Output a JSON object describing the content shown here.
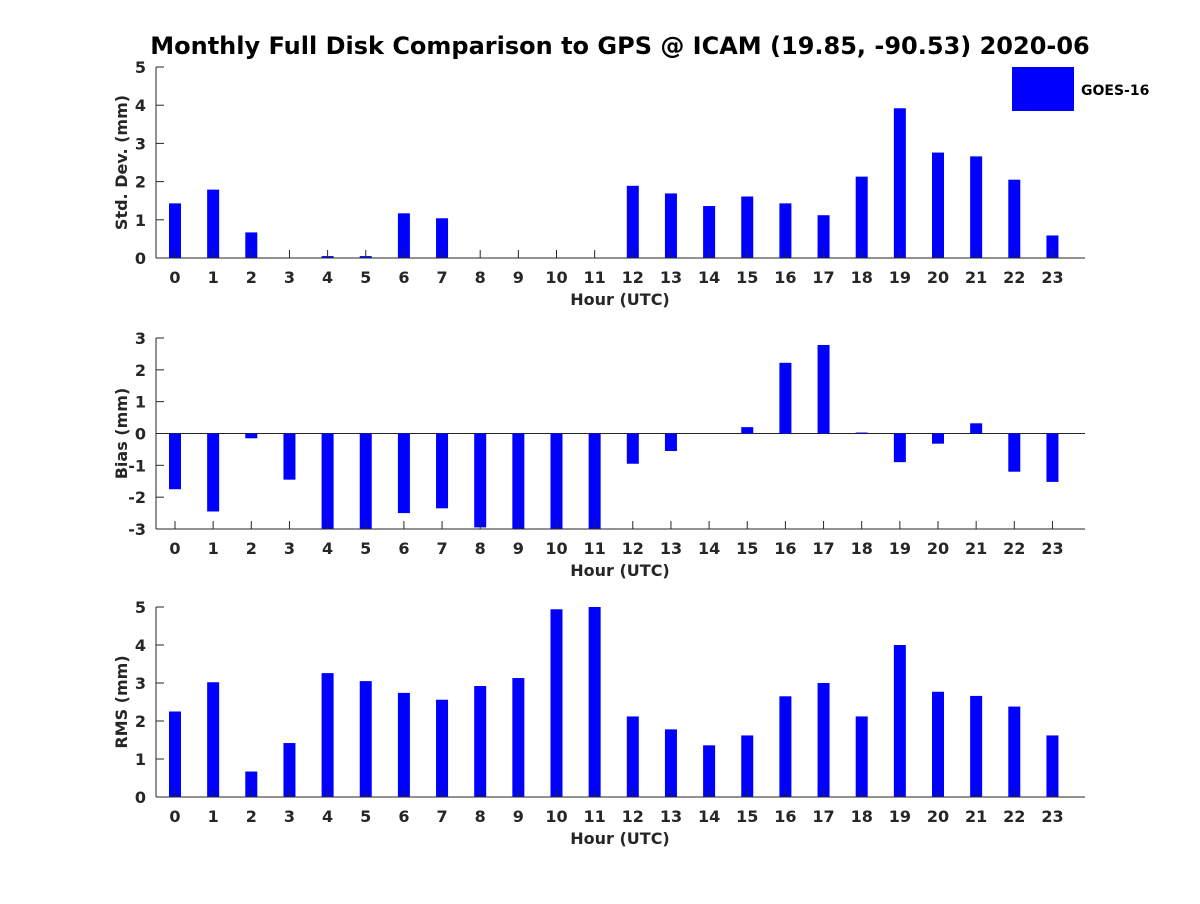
{
  "figure_title": "Monthly Full Disk Comparison to GPS @ ICAM (19.85, -90.53) 2020-06",
  "legend": {
    "label": "GOES-16",
    "color": "#0000ff",
    "placement": "top-right"
  },
  "chart_data": [
    {
      "type": "bar",
      "ylabel": "Std. Dev. (mm)",
      "xlabel": "Hour (UTC)",
      "categories": [
        "0",
        "1",
        "2",
        "3",
        "4",
        "5",
        "6",
        "7",
        "8",
        "9",
        "10",
        "11",
        "12",
        "13",
        "14",
        "15",
        "16",
        "17",
        "18",
        "19",
        "20",
        "21",
        "22",
        "23"
      ],
      "ylim": [
        0,
        5
      ],
      "yticks": [
        0,
        1,
        2,
        3,
        4,
        5
      ],
      "series": [
        {
          "name": "GOES-16",
          "values": [
            1.43,
            1.79,
            0.67,
            0,
            0.05,
            0.05,
            1.17,
            1.04,
            0,
            0,
            0,
            0,
            1.89,
            1.69,
            1.36,
            1.61,
            1.43,
            1.12,
            2.13,
            3.92,
            2.76,
            2.66,
            2.05,
            0.59
          ]
        }
      ],
      "grid": false
    },
    {
      "type": "bar",
      "ylabel": "Bias (mm)",
      "xlabel": "Hour (UTC)",
      "categories": [
        "0",
        "1",
        "2",
        "3",
        "4",
        "5",
        "6",
        "7",
        "8",
        "9",
        "10",
        "11",
        "12",
        "13",
        "14",
        "15",
        "16",
        "17",
        "18",
        "19",
        "20",
        "21",
        "22",
        "23"
      ],
      "ylim": [
        -3,
        3
      ],
      "yticks": [
        -3,
        -2,
        -1,
        0,
        1,
        2,
        3
      ],
      "series": [
        {
          "name": "GOES-16",
          "values": [
            -1.75,
            -2.45,
            -0.15,
            -1.45,
            -3.0,
            -3.0,
            -2.5,
            -2.35,
            -2.95,
            -3.0,
            -3.0,
            -3.0,
            -0.95,
            -0.55,
            0,
            0.2,
            2.22,
            2.78,
            0.03,
            -0.9,
            -0.32,
            0.32,
            -1.2,
            -1.52
          ]
        }
      ],
      "grid": false
    },
    {
      "type": "bar",
      "ylabel": "RMS (mm)",
      "xlabel": "Hour (UTC)",
      "categories": [
        "0",
        "1",
        "2",
        "3",
        "4",
        "5",
        "6",
        "7",
        "8",
        "9",
        "10",
        "11",
        "12",
        "13",
        "14",
        "15",
        "16",
        "17",
        "18",
        "19",
        "20",
        "21",
        "22",
        "23"
      ],
      "ylim": [
        0,
        5
      ],
      "yticks": [
        0,
        1,
        2,
        3,
        4,
        5
      ],
      "series": [
        {
          "name": "GOES-16",
          "values": [
            2.25,
            3.02,
            0.67,
            1.42,
            3.26,
            3.05,
            2.74,
            2.56,
            2.92,
            3.13,
            4.94,
            5.0,
            2.12,
            1.78,
            1.36,
            1.62,
            2.65,
            3.0,
            2.12,
            4.0,
            2.77,
            2.66,
            2.38,
            1.62
          ]
        }
      ],
      "grid": false
    }
  ]
}
